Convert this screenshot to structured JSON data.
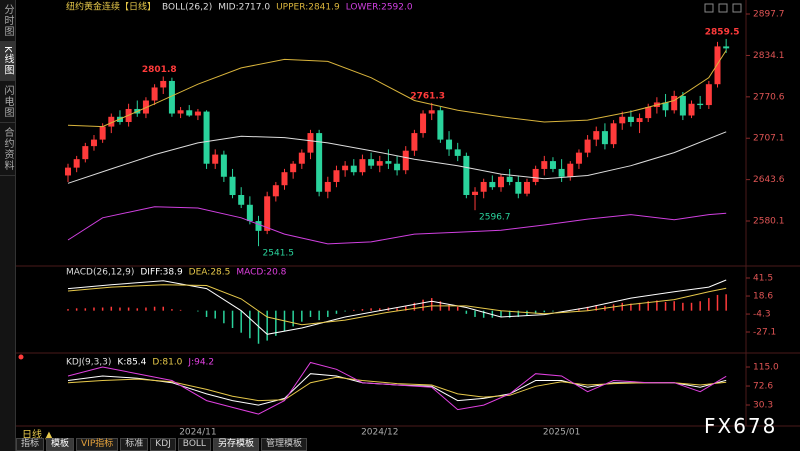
{
  "sidebar": [
    "分时图",
    "K线图",
    "闪电图",
    "合约资料"
  ],
  "toolbar": {
    "period": "日线 ▲",
    "tabs": [
      "指标",
      "模板",
      "VIP指标",
      "标准",
      "KDJ",
      "BOLL",
      "另存模板",
      "管理模板"
    ]
  },
  "watermark": "FX678",
  "chart_data": [
    {
      "type": "candlestick",
      "title": "纽约黄金连续【日线】",
      "legend": [
        {
          "text": "BOLL(26,2)",
          "color": "#dddddd"
        },
        {
          "text": "MID:2717.0",
          "color": "#dddddd"
        },
        {
          "text": "UPPER:2841.9",
          "color": "#d9b43c"
        },
        {
          "text": "LOWER:2592.0",
          "color": "#d040e0"
        }
      ],
      "categories": [
        null,
        null,
        null,
        null,
        null,
        null,
        null,
        null,
        null,
        null,
        null,
        null,
        null,
        null,
        null,
        "2024/11",
        null,
        null,
        null,
        null,
        null,
        null,
        null,
        null,
        null,
        null,
        null,
        null,
        null,
        null,
        null,
        null,
        null,
        null,
        null,
        null,
        "2024/12",
        null,
        null,
        null,
        null,
        null,
        null,
        null,
        null,
        null,
        null,
        null,
        null,
        null,
        null,
        null,
        null,
        null,
        null,
        null,
        null,
        "2025/01",
        null,
        null,
        null,
        null,
        null,
        null,
        null,
        null,
        null,
        null,
        null,
        null,
        null,
        null,
        null,
        null,
        null,
        null,
        null
      ],
      "open": [
        2650,
        2662,
        2675,
        2695,
        2705,
        2725,
        2740,
        2732,
        2752,
        2745,
        2765,
        2785,
        2795,
        2745,
        2750,
        2742,
        2748,
        2668,
        2682,
        2648,
        2620,
        2605,
        2580,
        2565,
        2618,
        2635,
        2655,
        2668,
        2685,
        2715,
        2625,
        2640,
        2658,
        2665,
        2655,
        2675,
        2665,
        2672,
        2668,
        2658,
        2688,
        2715,
        2745,
        2750,
        2705,
        2690,
        2680,
        2620,
        2625,
        2640,
        2632,
        2648,
        2640,
        2622,
        2640,
        2660,
        2672,
        2660,
        2648,
        2668,
        2685,
        2705,
        2718,
        2698,
        2730,
        2740,
        2732,
        2738,
        2755,
        2762,
        2750,
        2772,
        2742,
        2760,
        2758,
        2790,
        2848
      ],
      "high": [
        2668,
        2680,
        2700,
        2712,
        2730,
        2745,
        2750,
        2760,
        2765,
        2770,
        2790,
        2801.8,
        2800,
        2755,
        2758,
        2752,
        2750,
        2690,
        2688,
        2660,
        2632,
        2618,
        2588,
        2625,
        2640,
        2660,
        2672,
        2690,
        2720,
        2720,
        2648,
        2665,
        2672,
        2675,
        2682,
        2685,
        2680,
        2690,
        2680,
        2695,
        2720,
        2750,
        2761.3,
        2755,
        2718,
        2700,
        2685,
        2632,
        2645,
        2650,
        2652,
        2660,
        2650,
        2645,
        2665,
        2680,
        2678,
        2675,
        2672,
        2690,
        2712,
        2725,
        2730,
        2735,
        2748,
        2750,
        2745,
        2760,
        2770,
        2775,
        2780,
        2778,
        2765,
        2772,
        2795,
        2855,
        2859.5
      ],
      "low": [
        2640,
        2655,
        2670,
        2688,
        2700,
        2715,
        2728,
        2725,
        2740,
        2738,
        2758,
        2775,
        2740,
        2738,
        2740,
        2735,
        2660,
        2660,
        2640,
        2615,
        2600,
        2575,
        2541.5,
        2560,
        2610,
        2628,
        2645,
        2660,
        2675,
        2618,
        2615,
        2632,
        2648,
        2650,
        2650,
        2660,
        2655,
        2660,
        2650,
        2652,
        2680,
        2708,
        2735,
        2700,
        2680,
        2672,
        2615,
        2596.7,
        2615,
        2628,
        2625,
        2635,
        2615,
        2618,
        2635,
        2650,
        2655,
        2640,
        2642,
        2660,
        2678,
        2695,
        2690,
        2692,
        2720,
        2725,
        2715,
        2732,
        2745,
        2740,
        2745,
        2735,
        2738,
        2752,
        2752,
        2785,
        2838
      ],
      "close": [
        2662,
        2675,
        2695,
        2705,
        2725,
        2740,
        2732,
        2752,
        2745,
        2765,
        2785,
        2795,
        2745,
        2750,
        2742,
        2748,
        2668,
        2682,
        2648,
        2620,
        2605,
        2580,
        2565,
        2618,
        2635,
        2655,
        2668,
        2685,
        2715,
        2625,
        2640,
        2658,
        2665,
        2655,
        2675,
        2665,
        2672,
        2668,
        2658,
        2688,
        2715,
        2745,
        2750,
        2705,
        2690,
        2680,
        2620,
        2625,
        2640,
        2632,
        2648,
        2640,
        2622,
        2640,
        2660,
        2672,
        2660,
        2648,
        2668,
        2685,
        2705,
        2718,
        2698,
        2730,
        2740,
        2732,
        2738,
        2755,
        2762,
        2750,
        2772,
        2742,
        2760,
        2758,
        2790,
        2848,
        2845
      ],
      "up_color": "#ff3b3b",
      "down_color": "#2ad39c",
      "overlays": [
        {
          "color": "#dddddd",
          "x": [
            0,
            5,
            10,
            15,
            20,
            25,
            30,
            35,
            40,
            45,
            50,
            55,
            60,
            65,
            70,
            76
          ],
          "values": [
            2638,
            2660,
            2682,
            2700,
            2710,
            2708,
            2700,
            2688,
            2675,
            2665,
            2652,
            2645,
            2650,
            2665,
            2685,
            2717.0
          ]
        },
        {
          "color": "#d9b43c",
          "x": [
            0,
            4,
            10,
            15,
            20,
            25,
            30,
            35,
            40,
            45,
            50,
            55,
            60,
            65,
            70,
            74,
            76
          ],
          "values": [
            2727,
            2725,
            2760,
            2790,
            2815,
            2828,
            2825,
            2800,
            2765,
            2750,
            2740,
            2732,
            2735,
            2748,
            2765,
            2800,
            2841.9
          ]
        },
        {
          "color": "#d040e0",
          "x": [
            0,
            4,
            10,
            15,
            20,
            25,
            30,
            35,
            40,
            45,
            50,
            55,
            60,
            65,
            70,
            74,
            76
          ],
          "values": [
            2551,
            2585,
            2602,
            2600,
            2585,
            2560,
            2545,
            2548,
            2560,
            2563,
            2566,
            2574,
            2583,
            2590,
            2582,
            2590,
            2592.0
          ]
        }
      ],
      "ylim": [
        2512.6,
        2919.2
      ],
      "yticks": [
        2897.7,
        2834.1,
        2770.6,
        2707.1,
        2643.6,
        2580.1
      ],
      "tick_color": "#e05555"
    },
    {
      "type": "indicator",
      "legend": [
        {
          "text": "MACD(26,12,9)",
          "color": "#dddddd"
        },
        {
          "text": "DIFF:38.9",
          "color": "#ffffff"
        },
        {
          "text": "DEA:28.5",
          "color": "#e6c84a"
        },
        {
          "text": "MACD:20.8",
          "color": "#e040e0"
        }
      ],
      "series": [
        {
          "kind": "bar",
          "up_color": "#ff3b3b",
          "down_color": "#2ad39c",
          "values": [
            2,
            3,
            3,
            4,
            4,
            5,
            4,
            4,
            3,
            4,
            5,
            5,
            2,
            1,
            0,
            -1,
            -8,
            -10,
            -16,
            -22,
            -28,
            -35,
            -42,
            -38,
            -32,
            -26,
            -20,
            -14,
            -8,
            -12,
            -8,
            -4,
            -1,
            1,
            2,
            3,
            3,
            4,
            3,
            6,
            10,
            14,
            16,
            12,
            8,
            5,
            -4,
            -8,
            -9,
            -9,
            -8,
            -9,
            -8,
            -6,
            -4,
            -2,
            -1,
            0,
            1,
            3,
            5,
            7,
            6,
            8,
            10,
            9,
            10,
            12,
            13,
            11,
            12,
            10,
            10,
            12,
            16,
            20,
            20.8
          ]
        },
        {
          "kind": "line",
          "color": "#ffffff",
          "x": [
            0,
            5,
            11,
            16,
            20,
            23,
            27,
            32,
            37,
            42,
            46,
            50,
            55,
            60,
            65,
            70,
            74,
            76
          ],
          "values": [
            28,
            33,
            38,
            28,
            0,
            -30,
            -22,
            -8,
            2,
            12,
            4,
            -8,
            -5,
            4,
            16,
            24,
            30,
            38.9
          ]
        },
        {
          "kind": "line",
          "color": "#e6c84a",
          "x": [
            0,
            5,
            11,
            16,
            20,
            23,
            27,
            32,
            37,
            42,
            46,
            50,
            55,
            60,
            65,
            70,
            74,
            76
          ],
          "values": [
            25,
            30,
            33,
            32,
            15,
            -8,
            -18,
            -12,
            -2,
            6,
            6,
            0,
            -4,
            0,
            8,
            14,
            24,
            28.5
          ]
        }
      ],
      "ylim": [
        -52.5,
        54.2
      ],
      "yticks": [
        41.5,
        18.6,
        -4.3,
        -27.1
      ],
      "tick_color": "#e05555"
    },
    {
      "type": "indicator",
      "legend": [
        {
          "text": "KDJ(9,3,3)",
          "color": "#dddddd"
        },
        {
          "text": "K:85.4",
          "color": "#ffffff"
        },
        {
          "text": "D:81.0",
          "color": "#e6c84a"
        },
        {
          "text": "J:94.2",
          "color": "#e040e0"
        }
      ],
      "series": [
        {
          "kind": "line",
          "color": "#ffffff",
          "x": [
            0,
            4,
            8,
            12,
            16,
            19,
            22,
            25,
            28,
            31,
            34,
            38,
            42,
            45,
            48,
            51,
            54,
            57,
            60,
            63,
            67,
            70,
            73,
            76
          ],
          "values": [
            85,
            95,
            90,
            80,
            55,
            40,
            30,
            45,
            100,
            95,
            80,
            75,
            72,
            40,
            45,
            55,
            85,
            85,
            70,
            80,
            80,
            80,
            70,
            85.4
          ]
        },
        {
          "kind": "line",
          "color": "#e6c84a",
          "x": [
            0,
            4,
            8,
            12,
            16,
            19,
            22,
            25,
            28,
            31,
            34,
            38,
            42,
            45,
            48,
            51,
            54,
            57,
            60,
            63,
            67,
            70,
            73,
            76
          ],
          "values": [
            80,
            85,
            88,
            82,
            65,
            50,
            40,
            42,
            80,
            92,
            85,
            78,
            75,
            55,
            48,
            52,
            72,
            82,
            75,
            78,
            80,
            80,
            75,
            81.0
          ]
        },
        {
          "kind": "line",
          "color": "#e040e0",
          "x": [
            0,
            4,
            8,
            12,
            16,
            19,
            22,
            25,
            28,
            31,
            34,
            38,
            42,
            45,
            48,
            51,
            54,
            57,
            60,
            63,
            67,
            70,
            73,
            76
          ],
          "values": [
            95,
            115,
            100,
            85,
            40,
            25,
            10,
            40,
            125,
            110,
            80,
            75,
            70,
            20,
            30,
            55,
            100,
            95,
            60,
            85,
            80,
            80,
            60,
            94.2
          ]
        }
      ],
      "ylim": [
        -14.3,
        135.1
      ],
      "yticks": [
        {
          "value": 115,
          "label": "115.0"
        },
        72.6,
        30.3
      ],
      "tick_color": "#e05555"
    }
  ]
}
